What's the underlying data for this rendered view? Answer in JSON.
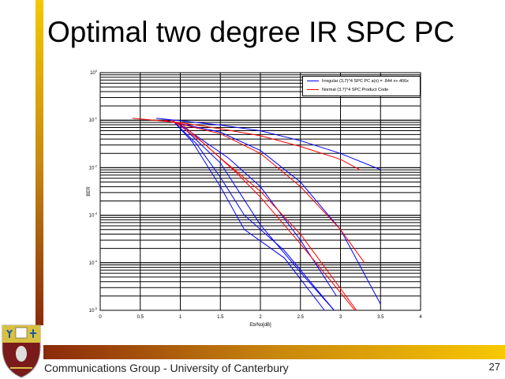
{
  "slide": {
    "title": "Optimal two degree IR SPC PC",
    "footer": "Communications Group - University of Canterbury",
    "page_number": "27",
    "logo": "University of Canterbury crest"
  },
  "colors": {
    "series_irregular": "#0000ff",
    "series_normal": "#ff0000",
    "accent_left": "#f5c800",
    "accent_dark": "#8b2a0a"
  },
  "chart_data": {
    "type": "line",
    "title": "",
    "xlabel": "Eb/No[dB]",
    "ylabel": "BER",
    "xlim": [
      0,
      4
    ],
    "ylim": [
      1e-05,
      1
    ],
    "yscale": "log",
    "grid": true,
    "legend_position": "top-right",
    "xticks": [
      "0",
      "0.5",
      "1",
      "1.5",
      "2",
      "2.5",
      "3",
      "3.5",
      "4"
    ],
    "yticks": [
      "10^0",
      "10^-1",
      "10^-2",
      "10^-3",
      "10^-4",
      "10^-5"
    ],
    "legend": [
      {
        "label": "Irregular (3,7)^4 SPC PC  a(x) = .844 x+.406x",
        "color": "#0000ff"
      },
      {
        "label": "Normal (3,7)^4 SPC Product Code",
        "color": "#ff0000"
      }
    ],
    "series": [
      {
        "group": "irregular",
        "points": [
          [
            0.7,
            0.11
          ],
          [
            1.5,
            0.079
          ],
          [
            2,
            0.06
          ],
          [
            2.5,
            0.037
          ],
          [
            3,
            0.02
          ],
          [
            3.5,
            0.0091
          ]
        ]
      },
      {
        "group": "irregular",
        "points": [
          [
            0.8,
            0.1
          ],
          [
            1.5,
            0.056
          ],
          [
            2,
            0.023
          ],
          [
            2.5,
            0.005
          ],
          [
            3,
            0.0005
          ],
          [
            3.5,
            1.35e-05
          ]
        ]
      },
      {
        "group": "irregular",
        "points": [
          [
            0.9,
            0.1
          ],
          [
            1.15,
            0.035
          ],
          [
            1.5,
            0.004
          ],
          [
            1.8,
            0.0005
          ],
          [
            2.3,
            0.000126
          ],
          [
            2.8,
            1e-05
          ]
        ]
      },
      {
        "group": "irregular",
        "points": [
          [
            0.9,
            0.1
          ],
          [
            1.2,
            0.032
          ],
          [
            1.5,
            0.0063
          ],
          [
            1.8,
            0.001
          ],
          [
            2.3,
            0.00018
          ],
          [
            2.92,
            1e-05
          ]
        ]
      },
      {
        "group": "irregular",
        "points": [
          [
            1.0,
            0.08
          ],
          [
            1.5,
            0.0126
          ],
          [
            2,
            0.00063
          ],
          [
            2.5,
            6.3e-05
          ],
          [
            2.92,
            1e-05
          ]
        ]
      },
      {
        "group": "irregular",
        "points": [
          [
            1.0,
            0.08
          ],
          [
            1.6,
            0.016
          ],
          [
            2,
            0.004
          ],
          [
            2.5,
            0.0003
          ],
          [
            2.95,
            2e-05
          ]
        ]
      },
      {
        "group": "normal",
        "points": [
          [
            0.4,
            0.11
          ],
          [
            1,
            0.089
          ],
          [
            1.5,
            0.066
          ],
          [
            2,
            0.047
          ],
          [
            2.5,
            0.028
          ],
          [
            3,
            0.015
          ],
          [
            3.25,
            0.0089
          ]
        ]
      },
      {
        "group": "normal",
        "points": [
          [
            0.8,
            0.1
          ],
          [
            1.5,
            0.052
          ],
          [
            2,
            0.02
          ],
          [
            2.5,
            0.004
          ],
          [
            3,
            0.0005
          ],
          [
            3.3,
            0.0001
          ]
        ]
      },
      {
        "group": "normal",
        "points": [
          [
            0.9,
            0.1
          ],
          [
            1.3,
            0.032
          ],
          [
            1.7,
            0.0079
          ],
          [
            2,
            0.0024
          ],
          [
            2.5,
            0.00025
          ],
          [
            3.18,
            1e-05
          ]
        ]
      },
      {
        "group": "normal",
        "points": [
          [
            1.0,
            0.089
          ],
          [
            1.5,
            0.016
          ],
          [
            2,
            0.0032
          ],
          [
            2.5,
            0.0004
          ],
          [
            3.2,
            1e-05
          ]
        ]
      }
    ]
  }
}
